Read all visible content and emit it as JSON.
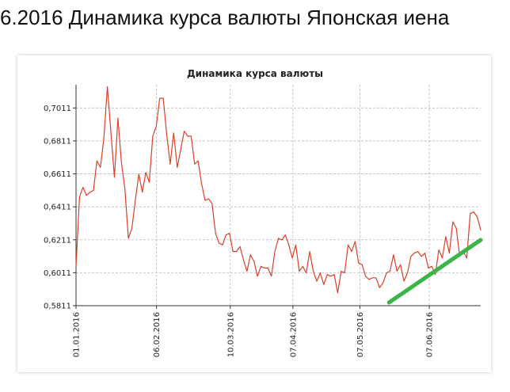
{
  "page": {
    "heading": "6.2016 Динамика курса валюты Японская иена"
  },
  "chart_data": {
    "type": "line",
    "title": "Динамика курса валюты",
    "xlabel": "",
    "ylabel": "",
    "grid": true,
    "x_start": "2016-01-01",
    "x_end": "2016-06-30",
    "x_ticks": [
      "01.01.2016",
      "06.02.2016",
      "10.03.2016",
      "07.04.2016",
      "07.05.2016",
      "07.06.2016"
    ],
    "y_ticks": [
      "0,7011",
      "0,6811",
      "0,6611",
      "0,6411",
      "0,6211",
      "0,6011",
      "0,5811"
    ],
    "ylim": [
      0.5811,
      0.7152
    ],
    "series": [
      {
        "color": "#d9412b",
        "values": [
          0.605,
          0.647,
          0.653,
          0.648,
          0.65,
          0.651,
          0.669,
          0.665,
          0.683,
          0.714,
          0.686,
          0.659,
          0.695,
          0.668,
          0.652,
          0.622,
          0.628,
          0.645,
          0.661,
          0.65,
          0.662,
          0.656,
          0.684,
          0.69,
          0.707,
          0.707,
          0.685,
          0.667,
          0.686,
          0.665,
          0.676,
          0.687,
          0.684,
          0.684,
          0.667,
          0.669,
          0.655,
          0.645,
          0.646,
          0.643,
          0.625,
          0.619,
          0.618,
          0.624,
          0.625,
          0.614,
          0.614,
          0.617,
          0.609,
          0.602,
          0.612,
          0.608,
          0.599,
          0.605,
          0.604,
          0.604,
          0.599,
          0.614,
          0.622,
          0.621,
          0.624,
          0.618,
          0.61,
          0.618,
          0.602,
          0.605,
          0.601,
          0.614,
          0.602,
          0.596,
          0.601,
          0.594,
          0.6,
          0.599,
          0.6,
          0.589,
          0.602,
          0.601,
          0.618,
          0.614,
          0.62,
          0.607,
          0.606,
          0.599,
          0.597,
          0.598,
          0.598,
          0.592,
          0.595,
          0.601,
          0.602,
          0.612,
          0.602,
          0.606,
          0.596,
          0.601,
          0.611,
          0.613,
          0.614,
          0.611,
          0.613,
          0.604,
          0.605,
          0.6,
          0.615,
          0.61,
          0.623,
          0.613,
          0.632,
          0.628,
          0.611,
          0.614,
          0.61,
          0.637,
          0.638,
          0.635,
          0.627
        ]
      },
      {
        "color": "#3bb54a",
        "values": [
          0.583,
          0.621
        ],
        "x_range": [
          "2016-05-20",
          "2016-06-30"
        ]
      }
    ]
  }
}
